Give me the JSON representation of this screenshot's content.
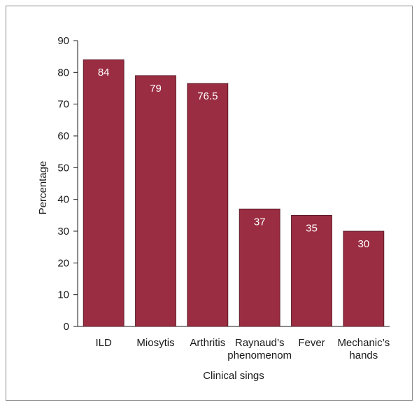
{
  "chart_data": {
    "type": "bar",
    "categories": [
      [
        "ILD"
      ],
      [
        "Miosytis"
      ],
      [
        "Arthritis"
      ],
      [
        "Raynaud’s",
        "phenomenom"
      ],
      [
        "Fever"
      ],
      [
        "Mechanic’s",
        "hands"
      ]
    ],
    "values": [
      84,
      79,
      76.5,
      37,
      35,
      30
    ],
    "data_labels": [
      "84",
      "79",
      "76.5",
      "37",
      "35",
      "30"
    ],
    "xlabel": "Clinical sings",
    "ylabel": "Percentage",
    "ylim": [
      0,
      90
    ],
    "yticks": [
      0,
      10,
      20,
      30,
      40,
      50,
      60,
      70,
      80,
      90
    ],
    "bar_color": "#9b2d42",
    "grid": false,
    "legend": "none"
  }
}
